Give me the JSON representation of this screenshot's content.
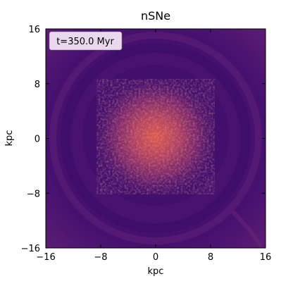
{
  "chart_data": {
    "type": "heatmap",
    "title": "nSNe",
    "xlabel": "kpc",
    "ylabel": "kpc",
    "xlim": [
      -16,
      16
    ],
    "ylim": [
      -16,
      16
    ],
    "xticks": [
      -16,
      -8,
      0,
      8,
      16
    ],
    "yticks": [
      -16,
      -8,
      0,
      8,
      16
    ],
    "xtick_labels": [
      "−16",
      "−8",
      "0",
      "8",
      "16"
    ],
    "ytick_labels": [
      "−16",
      "−8",
      "0",
      "8",
      "16"
    ],
    "annotation": "t=350.0 Myr",
    "colormap": "magma",
    "colors": {
      "background_low": "#3b0f6f",
      "disk_ring": "#4a1470",
      "core_high": "#e0594a",
      "annotation_box": "#ead9ee"
    },
    "grid": false,
    "legend": "none",
    "features": {
      "core_extent_kpc": 8,
      "ring_radius_kpc": 13
    }
  }
}
